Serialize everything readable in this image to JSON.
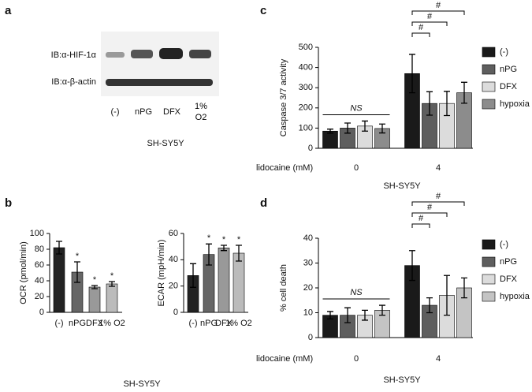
{
  "panel_a": {
    "label": "a",
    "rows": [
      "IB:α-HIF-1α",
      "IB:α-β-actin"
    ],
    "lanes": [
      "(-)",
      "nPG",
      "DFX",
      "1%\nO2"
    ],
    "caption": "SH-SY5Y"
  },
  "chart_data": [
    {
      "type": "bar",
      "panel": "b",
      "ylabel": "OCR (pmol/min)",
      "categories": [
        "(-)",
        "nPG",
        "DFX",
        "1% O2"
      ],
      "values": [
        82,
        51,
        32,
        36
      ],
      "errors": [
        8,
        13,
        2,
        3
      ],
      "bar_labels": [
        null,
        "*",
        "*",
        "*"
      ],
      "colors": [
        "#222222",
        "#666666",
        "#999999",
        "#bbbbbb"
      ],
      "ylim": [
        0,
        100
      ],
      "yticks": [
        0,
        20,
        40,
        60,
        80,
        100
      ],
      "caption": "SH-SY5Y"
    },
    {
      "type": "bar",
      "ylabel": "ECAR (mpH/min)",
      "categories": [
        "(-)",
        "nPG",
        "DFX",
        "1% O2"
      ],
      "values": [
        28,
        44,
        49,
        45
      ],
      "errors": [
        9,
        8,
        2,
        6
      ],
      "bar_labels": [
        null,
        "*",
        "*",
        "*"
      ],
      "colors": [
        "#222222",
        "#666666",
        "#999999",
        "#bbbbbb"
      ],
      "ylim": [
        0,
        60
      ],
      "yticks": [
        0,
        20,
        40,
        60
      ]
    },
    {
      "type": "grouped_bar",
      "panel": "c",
      "ylabel": "Caspase 3/7 activity",
      "xlabel": "lidocaine (mM)",
      "categories": [
        "0",
        "4"
      ],
      "series": [
        {
          "name": "(-)",
          "color": "#1a1a1a",
          "values": [
            85,
            370
          ],
          "errors": [
            10,
            95
          ]
        },
        {
          "name": "nPG",
          "color": "#5e5e5e",
          "values": [
            100,
            222
          ],
          "errors": [
            25,
            58
          ]
        },
        {
          "name": "DFX",
          "color": "#dcdcdc",
          "values": [
            110,
            222
          ],
          "errors": [
            25,
            60
          ]
        },
        {
          "name": "hypoxia",
          "color": "#8c8c8c",
          "values": [
            98,
            275
          ],
          "errors": [
            22,
            52
          ]
        }
      ],
      "annotations": [
        "NS",
        "#",
        "#",
        "#"
      ],
      "ylim": [
        0,
        500
      ],
      "yticks": [
        0,
        100,
        200,
        300,
        400,
        500
      ],
      "caption": "SH-SY5Y"
    },
    {
      "type": "grouped_bar",
      "panel": "d",
      "ylabel": "% cell death",
      "xlabel": "lidocaine (mM)",
      "categories": [
        "0",
        "4"
      ],
      "series": [
        {
          "name": "(-)",
          "color": "#1a1a1a",
          "values": [
            9,
            29
          ],
          "errors": [
            1.5,
            6
          ]
        },
        {
          "name": "nPG",
          "color": "#5e5e5e",
          "values": [
            9,
            13
          ],
          "errors": [
            3,
            3
          ]
        },
        {
          "name": "DFX",
          "color": "#dcdcdc",
          "values": [
            9,
            17
          ],
          "errors": [
            2,
            8
          ]
        },
        {
          "name": "hypoxia",
          "color": "#c4c4c4",
          "values": [
            11,
            20
          ],
          "errors": [
            2,
            4
          ]
        }
      ],
      "annotations": [
        "NS",
        "#",
        "#",
        "#"
      ],
      "ylim": [
        0,
        40
      ],
      "yticks": [
        0,
        10,
        20,
        30,
        40
      ],
      "caption": "SH-SY5Y"
    }
  ]
}
